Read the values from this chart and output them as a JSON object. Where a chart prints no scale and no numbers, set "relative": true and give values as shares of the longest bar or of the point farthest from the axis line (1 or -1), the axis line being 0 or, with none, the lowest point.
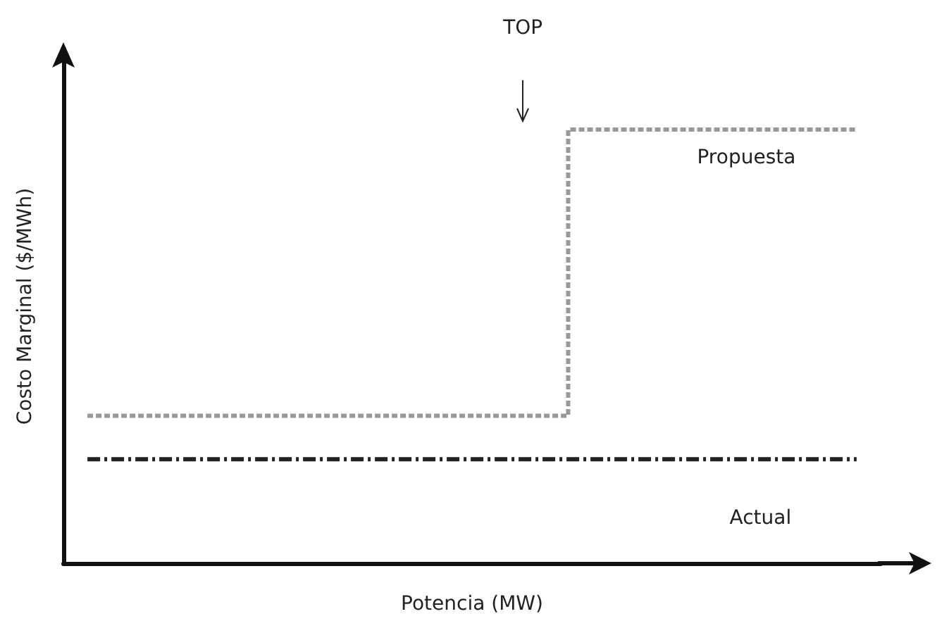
{
  "chart_data": {
    "type": "step",
    "relative": true,
    "xlabel": "Potencia (MW)",
    "ylabel": "Costo Marginal ($/MWh)",
    "categories": [
      null,
      null,
      null,
      null,
      null,
      null,
      null,
      null,
      null,
      null,
      null,
      null,
      null,
      null,
      null,
      null,
      null
    ],
    "series": [
      {
        "name": "Propuesta",
        "color": "#999999",
        "line_style": "dotted",
        "values": [
          0.34,
          0.34,
          0.34,
          0.34,
          0.34,
          0.34,
          0.34,
          0.34,
          0.34,
          0.34,
          1,
          1,
          1,
          1,
          1,
          1,
          1
        ]
      },
      {
        "name": "Actual",
        "color": "#222222",
        "line_style": "dashed",
        "values": [
          0.24,
          0.24,
          0.24,
          0.24,
          0.24,
          0.24,
          0.24,
          0.24,
          0.24,
          0.24,
          0.24,
          0.24,
          0.24,
          0.24,
          0.24,
          0.24,
          0.24
        ]
      }
    ],
    "annotations": [
      "TOP"
    ],
    "grid": false,
    "legend": false,
    "marker": "none"
  }
}
